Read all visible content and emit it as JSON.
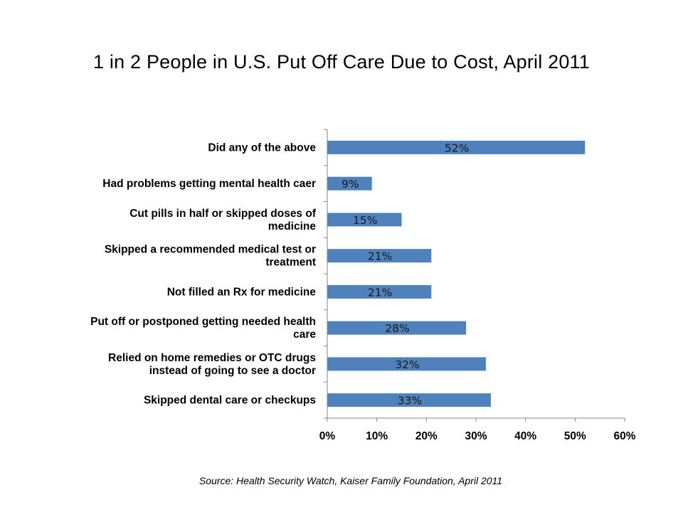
{
  "chart_data": {
    "type": "bar",
    "orientation": "horizontal",
    "title": "1 in 2 People in U.S. Put Off Care Due to Cost, April 2011",
    "categories": [
      "Did any of the above",
      "Had problems getting mental health caer",
      "Cut pills in half or skipped doses of medicine",
      "Skipped a recommended medical test or treatment",
      "Not filled an Rx for medicine",
      "Put off or postponed getting needed health care",
      "Relied on home remedies or OTC drugs instead of going to see a doctor",
      "Skipped dental care or checkups"
    ],
    "category_lines": [
      [
        "Did any of the above"
      ],
      [
        "Had problems getting mental health caer"
      ],
      [
        "Cut pills in half or skipped doses of",
        "medicine"
      ],
      [
        "Skipped a recommended medical test or",
        "treatment"
      ],
      [
        "Not filled an Rx for medicine"
      ],
      [
        "Put off or postponed getting needed health",
        "care"
      ],
      [
        "Relied on home remedies or OTC drugs",
        "instead of going to see a doctor"
      ],
      [
        "Skipped dental care or checkups"
      ]
    ],
    "values": [
      52,
      9,
      15,
      21,
      21,
      28,
      32,
      33
    ],
    "data_labels": [
      "52%",
      "9%",
      "15%",
      "21%",
      "21%",
      "28%",
      "32%",
      "33%"
    ],
    "xlim": [
      0,
      60
    ],
    "x_ticks": [
      0,
      10,
      20,
      30,
      40,
      50,
      60
    ],
    "x_tick_labels": [
      "0%",
      "10%",
      "20%",
      "30%",
      "40%",
      "50%",
      "60%"
    ],
    "bar_color": "#4f81bd",
    "axis_color": "#868686",
    "grid": false,
    "legend": "none",
    "source": "Source: Health Security Watch, Kaiser Family Foundation, April 2011"
  }
}
